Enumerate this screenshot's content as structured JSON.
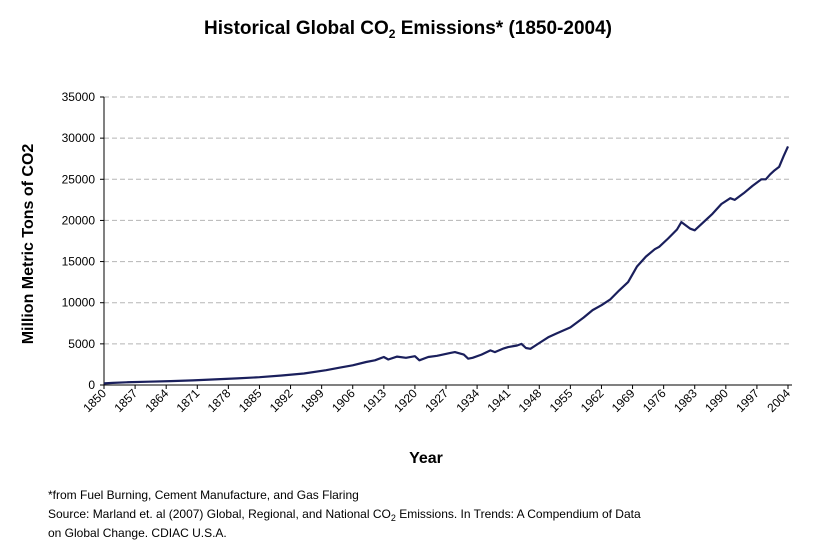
{
  "title": {
    "before_sub": "Historical Global CO",
    "sub": "2",
    "after_sub": " Emissions* (1850-2004)"
  },
  "footnote": {
    "line1": "*from Fuel Burning, Cement Manufacture, and Gas Flaring",
    "line2_before_sub": "Source: Marland et. al (2007) Global, Regional, and National CO",
    "line2_sub": "2",
    "line2_after_sub": " Emissions. In Trends: A Compendium of Data",
    "line3": "on Global Change. CDIAC U.S.A."
  },
  "chart_data": {
    "type": "line",
    "title": "Historical Global CO2 Emissions* (1850-2004)",
    "xlabel": "Year",
    "ylabel": "Million Metric Tons of CO2",
    "xlim": [
      1850,
      2004
    ],
    "ylim": [
      0,
      35000
    ],
    "yticks": [
      0,
      5000,
      10000,
      15000,
      20000,
      25000,
      30000,
      35000
    ],
    "ytick_labels": [
      "0",
      "5000",
      "10000",
      "15000",
      "20000",
      "25000",
      "30000",
      "35000"
    ],
    "xticks": [
      1850,
      1857,
      1864,
      1871,
      1878,
      1885,
      1892,
      1899,
      1906,
      1913,
      1920,
      1927,
      1934,
      1941,
      1948,
      1955,
      1962,
      1969,
      1976,
      1983,
      1990,
      1997,
      2004
    ],
    "xtick_labels": [
      "1850",
      "1857",
      "1864",
      "1871",
      "1878",
      "1885",
      "1892",
      "1899",
      "1906",
      "1913",
      "1920",
      "1927",
      "1934",
      "1941",
      "1948",
      "1955",
      "1962",
      "1969",
      "1976",
      "1983",
      "1990",
      "1997",
      "2004"
    ],
    "grid": true,
    "series": [
      {
        "name": "Global CO2 Emissions",
        "color": "#1a1f5c",
        "x": [
          1850,
          1852,
          1855,
          1860,
          1865,
          1870,
          1875,
          1880,
          1885,
          1890,
          1895,
          1900,
          1903,
          1906,
          1909,
          1911,
          1913,
          1914,
          1916,
          1918,
          1920,
          1921,
          1923,
          1925,
          1928,
          1929,
          1931,
          1932,
          1933,
          1935,
          1937,
          1938,
          1940,
          1941,
          1943,
          1944,
          1945,
          1946,
          1948,
          1950,
          1952,
          1955,
          1958,
          1960,
          1962,
          1964,
          1966,
          1968,
          1970,
          1972,
          1974,
          1975,
          1977,
          1979,
          1980,
          1982,
          1983,
          1985,
          1987,
          1989,
          1991,
          1992,
          1994,
          1996,
          1998,
          1999,
          2000,
          2001,
          2002,
          2003,
          2004
        ],
        "values": [
          200,
          260,
          330,
          400,
          470,
          560,
          680,
          800,
          950,
          1150,
          1400,
          1800,
          2100,
          2400,
          2800,
          3000,
          3400,
          3100,
          3450,
          3300,
          3500,
          3000,
          3400,
          3550,
          3900,
          4000,
          3700,
          3200,
          3300,
          3700,
          4200,
          4000,
          4450,
          4600,
          4800,
          5000,
          4500,
          4400,
          5100,
          5800,
          6300,
          7000,
          8200,
          9100,
          9700,
          10400,
          11500,
          12500,
          14400,
          15600,
          16500,
          16800,
          17800,
          18900,
          19800,
          19000,
          18800,
          19800,
          20800,
          22000,
          22700,
          22500,
          23300,
          24200,
          25000,
          25000,
          25600,
          26100,
          26500,
          27800,
          29000
        ]
      }
    ]
  }
}
